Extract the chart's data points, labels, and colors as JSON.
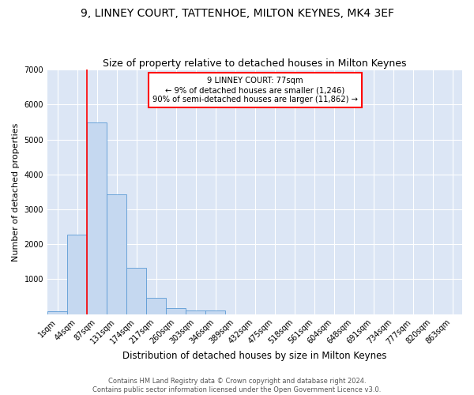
{
  "title": "9, LINNEY COURT, TATTENHOE, MILTON KEYNES, MK4 3EF",
  "subtitle": "Size of property relative to detached houses in Milton Keynes",
  "xlabel": "Distribution of detached houses by size in Milton Keynes",
  "ylabel": "Number of detached properties",
  "bar_labels": [
    "1sqm",
    "44sqm",
    "87sqm",
    "131sqm",
    "174sqm",
    "217sqm",
    "260sqm",
    "303sqm",
    "346sqm",
    "389sqm",
    "432sqm",
    "475sqm",
    "518sqm",
    "561sqm",
    "604sqm",
    "648sqm",
    "691sqm",
    "734sqm",
    "777sqm",
    "820sqm",
    "863sqm"
  ],
  "bar_values": [
    75,
    2275,
    5480,
    3420,
    1320,
    460,
    175,
    100,
    95,
    0,
    0,
    0,
    0,
    0,
    0,
    0,
    0,
    0,
    0,
    0,
    0
  ],
  "bar_color": "#c5d8f0",
  "bar_edge_color": "#5b9bd5",
  "background_color": "#dce6f5",
  "grid_color": "#ffffff",
  "annotation_box_text": "9 LINNEY COURT: 77sqm\n← 9% of detached houses are smaller (1,246)\n90% of semi-detached houses are larger (11,862) →",
  "redline_x": 2,
  "ylim": [
    0,
    7000
  ],
  "yticks": [
    0,
    1000,
    2000,
    3000,
    4000,
    5000,
    6000,
    7000
  ],
  "footnote": "Contains HM Land Registry data © Crown copyright and database right 2024.\nContains public sector information licensed under the Open Government Licence v3.0.",
  "title_fontsize": 10,
  "subtitle_fontsize": 9,
  "xlabel_fontsize": 8.5,
  "ylabel_fontsize": 8,
  "tick_fontsize": 7,
  "footnote_fontsize": 6,
  "fig_bg": "#ffffff"
}
